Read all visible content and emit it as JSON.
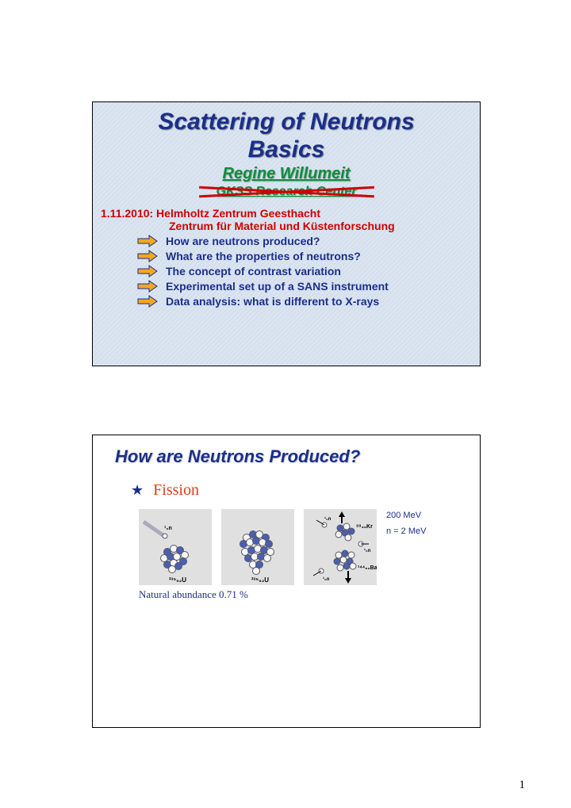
{
  "slide1": {
    "title_line1": "Scattering of Neutrons",
    "title_line2": "Basics",
    "author": "Regine Willumeit",
    "center": "GKSS Research Center",
    "date": "1.11.2010: Helmholtz Zentrum Geesthacht",
    "date_sub": "Zentrum für Material und Küstenforschung",
    "bullets": [
      "How are neutrons produced?",
      "What are the properties of neutrons?",
      "The concept of contrast variation",
      "Experimental set up of a SANS instrument",
      "Data analysis: what is different to X-rays"
    ],
    "arrow_fill": "#f5a623",
    "arrow_stroke": "#1a2f8a"
  },
  "slide2": {
    "title": "How are Neutrons Produced?",
    "heading": "Fission",
    "info1": "200 MeV",
    "info2": "n = 2 MeV",
    "abundance": "Natural abundance 0.71 %",
    "isotope_u": "²³⁵₉₂U",
    "isotope_kr": "⁸⁹₃₆Kr",
    "isotope_ba": "¹⁴⁴₅₆Ba",
    "neutron_symbol": "¹₀n"
  },
  "page_number": "1",
  "colors": {
    "title_blue": "#1a2f8a",
    "green": "#0c8f3c",
    "red": "#d00000",
    "orange": "#e03c1a",
    "arrow_fill": "#f5a623",
    "gray_box": "#e0e0e0",
    "slide1_bg": "#d8e1ef",
    "proton_fill": "#4a5fb0",
    "neutron_fill": "#f5f5f5",
    "sphere_stroke": "#556"
  }
}
